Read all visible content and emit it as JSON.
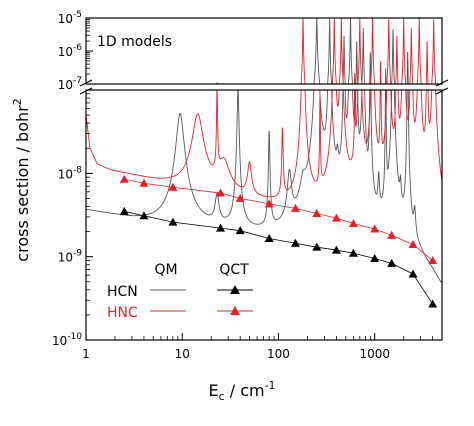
{
  "chart_data": {
    "type": "line",
    "panel_label": "1D models",
    "xlabel": "E",
    "xlabel_sub": "c",
    "xlabel_unit": " / cm",
    "xlabel_unit_sup": "-1",
    "ylabel": "cross section / bohr",
    "ylabel_sup": "2",
    "x_scale": "log",
    "y_scale": "log (broken axis)",
    "xlim": [
      1,
      5000
    ],
    "ylim_lower": [
      1e-10,
      1e-07
    ],
    "ylim_upper": [
      1e-07,
      1e-05
    ],
    "x_ticks": [
      {
        "value": 1,
        "label": "1"
      },
      {
        "value": 10,
        "label": "10"
      },
      {
        "value": 100,
        "label": "100"
      },
      {
        "value": 1000,
        "label": "1000"
      }
    ],
    "y_ticks_lower": [
      {
        "base": "10",
        "exp": "-10",
        "value": 1e-10
      },
      {
        "base": "10",
        "exp": "-9",
        "value": 1e-09
      },
      {
        "base": "10",
        "exp": "-8",
        "value": 1e-08
      }
    ],
    "y_ticks_upper": [
      {
        "base": "10",
        "exp": "-7",
        "value": 1e-07
      },
      {
        "base": "10",
        "exp": "-6",
        "value": 1e-06
      },
      {
        "base": "10",
        "exp": "-5",
        "value": 1e-05
      }
    ],
    "legend": {
      "col_headers": [
        "QM",
        "QCT"
      ],
      "rows": [
        {
          "label": "HCN",
          "color": "#000000"
        },
        {
          "label": "HNC",
          "color": "#e8202a"
        }
      ]
    },
    "series": [
      {
        "name": "HCN",
        "method": "QM",
        "color": "#555555",
        "baseline_x": [
          1,
          2,
          3,
          5,
          7,
          10,
          15,
          20,
          30,
          50,
          80,
          120,
          200,
          300,
          500,
          800,
          1200,
          2000,
          3000,
          4000,
          5000
        ],
        "baseline_y": [
          3.6e-09,
          3.1e-09,
          2.8e-09,
          2.55e-09,
          2.4e-09,
          2.3e-09,
          2.2e-09,
          2.1e-09,
          1.95e-09,
          1.75e-09,
          1.55e-09,
          1.4e-09,
          1.25e-09,
          1.15e-09,
          1.02e-09,
          9e-10,
          8e-10,
          6.5e-10,
          5e-10,
          3e-10,
          1.6e-10
        ],
        "resonances": [
          {
            "x": 9.5,
            "peak": 5e-08,
            "width": 0.035
          },
          {
            "x": 23,
            "peak": 3e-09,
            "width": 0.02
          },
          {
            "x": 38,
            "peak": 1e-07,
            "width": 0.008
          },
          {
            "x": 80,
            "peak": 3e-08,
            "width": 0.006
          },
          {
            "x": 130,
            "peak": 8e-09,
            "width": 0.02
          },
          {
            "x": 180,
            "peak": 4e-09,
            "width": 0.03
          },
          {
            "x": 250,
            "peak": 1e-05,
            "width": 0.003
          },
          {
            "x": 290,
            "peak": 5e-09,
            "width": 0.015
          },
          {
            "x": 340,
            "peak": 1e-05,
            "width": 0.002
          },
          {
            "x": 410,
            "peak": 8e-09,
            "width": 0.01
          },
          {
            "x": 480,
            "peak": 3e-06,
            "width": 0.002
          },
          {
            "x": 560,
            "peak": 1e-05,
            "width": 0.002
          },
          {
            "x": 650,
            "peak": 2e-06,
            "width": 0.002
          },
          {
            "x": 760,
            "peak": 5e-06,
            "width": 0.002
          },
          {
            "x": 900,
            "peak": 1e-06,
            "width": 0.002
          },
          {
            "x": 1100,
            "peak": 6e-09,
            "width": 0.008
          },
          {
            "x": 1300,
            "peak": 3e-07,
            "width": 0.002
          },
          {
            "x": 1550,
            "peak": 5e-06,
            "width": 0.002
          },
          {
            "x": 1850,
            "peak": 4e-09,
            "width": 0.008
          },
          {
            "x": 2200,
            "peak": 1e-06,
            "width": 0.002
          },
          {
            "x": 2600,
            "peak": 2e-09,
            "width": 0.01
          }
        ]
      },
      {
        "name": "HNC",
        "method": "QM",
        "color": "#e8202a",
        "baseline_x": [
          1,
          1.1,
          1.3,
          1.6,
          2,
          3,
          5,
          8,
          12,
          20,
          30,
          50,
          80,
          120,
          200,
          300,
          500,
          800,
          1200,
          2000,
          3000,
          4000,
          5000
        ],
        "baseline_y": [
          5e-08,
          2e-08,
          1.3e-08,
          1.15e-08,
          1.05e-08,
          9.5e-09,
          8.2e-09,
          7.3e-09,
          6.6e-09,
          5.8e-09,
          5.2e-09,
          4.6e-09,
          4.1e-09,
          3.7e-09,
          3.3e-09,
          2.9e-09,
          2.45e-09,
          2.1e-09,
          1.8e-09,
          1.45e-09,
          1.15e-09,
          9.5e-10,
          8e-10
        ],
        "resonances": [
          {
            "x": 14.5,
            "peak": 4.5e-08,
            "width": 0.05
          },
          {
            "x": 23,
            "peak": 1e-07,
            "width": 0.004
          },
          {
            "x": 27,
            "peak": 8e-09,
            "width": 0.06
          },
          {
            "x": 50,
            "peak": 8e-09,
            "width": 0.02
          },
          {
            "x": 110,
            "peak": 3e-08,
            "width": 0.006
          },
          {
            "x": 180,
            "peak": 1e-05,
            "width": 0.002
          },
          {
            "x": 270,
            "peak": 8e-08,
            "width": 0.003
          },
          {
            "x": 380,
            "peak": 1e-05,
            "width": 0.002
          },
          {
            "x": 450,
            "peak": 1e-05,
            "width": 0.002
          },
          {
            "x": 620,
            "peak": 2e-07,
            "width": 0.002
          },
          {
            "x": 700,
            "peak": 1e-05,
            "width": 0.002
          },
          {
            "x": 950,
            "peak": 1e-05,
            "width": 0.002
          },
          {
            "x": 1150,
            "peak": 5e-07,
            "width": 0.002
          },
          {
            "x": 1400,
            "peak": 1e-05,
            "width": 0.002
          },
          {
            "x": 1700,
            "peak": 3e-06,
            "width": 0.002
          },
          {
            "x": 2000,
            "peak": 1e-05,
            "width": 0.002
          },
          {
            "x": 2400,
            "peak": 5e-06,
            "width": 0.002
          },
          {
            "x": 2900,
            "peak": 1e-05,
            "width": 0.002
          },
          {
            "x": 3500,
            "peak": 2e-06,
            "width": 0.002
          },
          {
            "x": 4100,
            "peak": 1e-05,
            "width": 0.002
          }
        ]
      },
      {
        "name": "HCN",
        "method": "QCT",
        "color": "#000000",
        "marker": "triangle",
        "x": [
          2.5,
          4,
          8,
          25,
          40,
          80,
          150,
          250,
          400,
          600,
          1000,
          1500,
          2500,
          4000
        ],
        "y": [
          3.5e-09,
          3.1e-09,
          2.6e-09,
          2.2e-09,
          2.05e-09,
          1.65e-09,
          1.45e-09,
          1.3e-09,
          1.2e-09,
          1.1e-09,
          9.5e-10,
          8.3e-10,
          6.2e-10,
          2.7e-10
        ]
      },
      {
        "name": "HNC",
        "method": "QCT",
        "color": "#e8202a",
        "marker": "triangle",
        "x": [
          2.5,
          4,
          8,
          25,
          40,
          80,
          150,
          250,
          400,
          600,
          1000,
          1500,
          2500,
          4000
        ],
        "y": [
          8.5e-09,
          7.6e-09,
          6.8e-09,
          5.8e-09,
          5e-09,
          4.3e-09,
          3.8e-09,
          3.3e-09,
          2.9e-09,
          2.5e-09,
          2.15e-09,
          1.8e-09,
          1.4e-09,
          9e-10
        ]
      }
    ]
  }
}
